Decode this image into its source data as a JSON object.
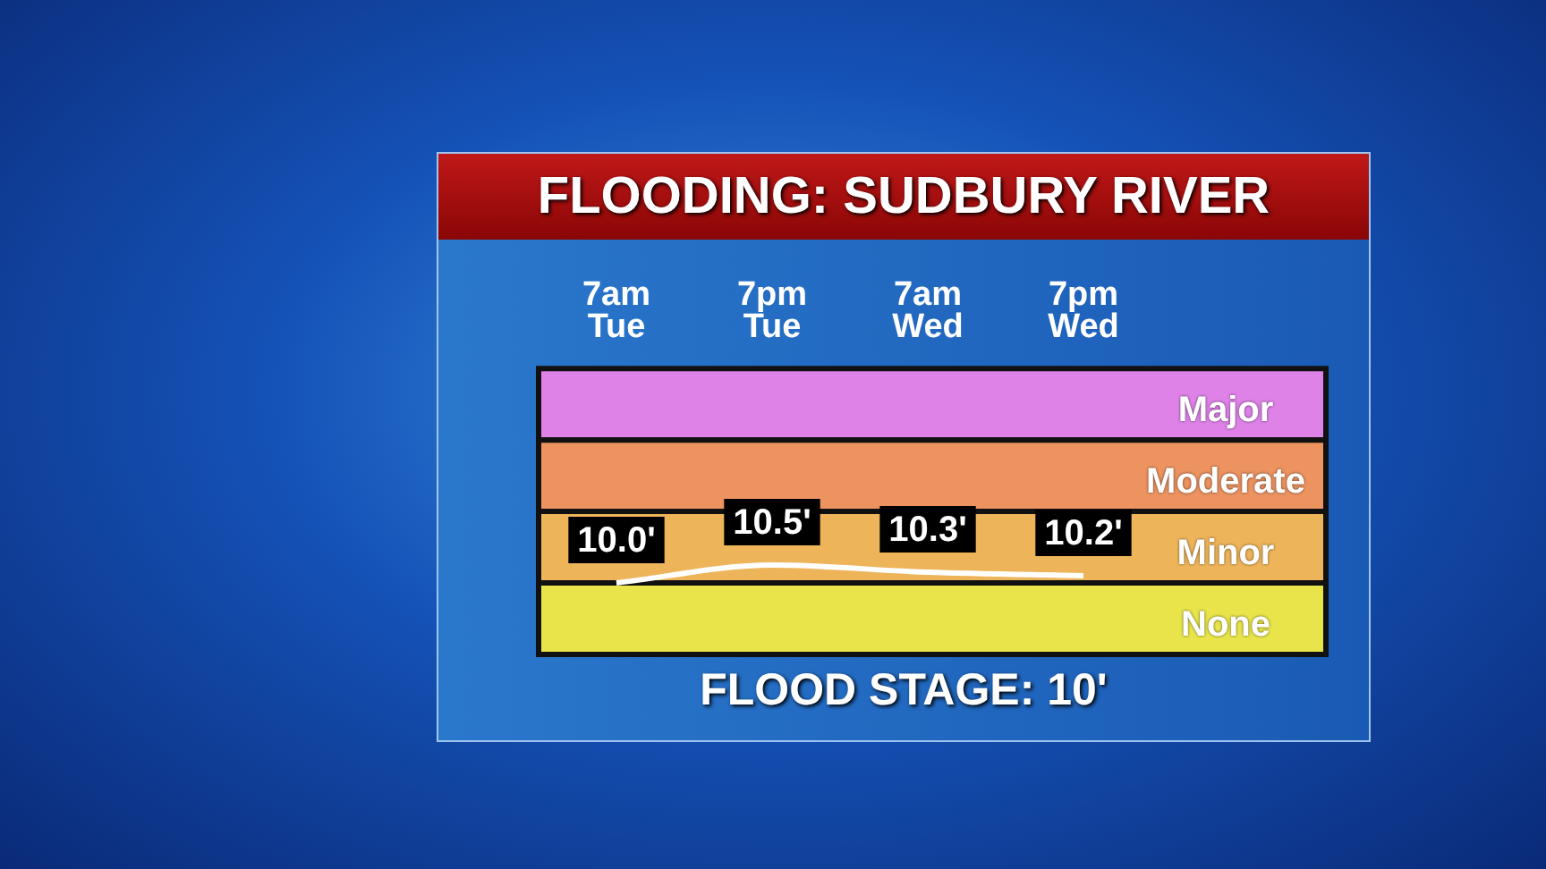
{
  "chart_data": {
    "type": "line",
    "title": "FLOODING: SUDBURY RIVER",
    "categories": [
      "7am Tue",
      "7pm Tue",
      "7am Wed",
      "7pm Wed"
    ],
    "series": [
      {
        "color": "#ffffff",
        "values": [
          10.0,
          10.5,
          10.3,
          10.2
        ],
        "value_labels": [
          "10.0'",
          "10.5'",
          "10.3'",
          "10.2'"
        ]
      }
    ],
    "tick_labels": "x",
    "legend": false,
    "marker": "none",
    "bands": [
      {
        "axis": "y",
        "from": 14,
        "to": 16,
        "label": "Major",
        "color": "#de82e8"
      },
      {
        "axis": "y",
        "from": 12,
        "to": 14,
        "label": "Moderate",
        "color": "#ec9360"
      },
      {
        "axis": "y",
        "from": 10,
        "to": 12,
        "label": "Minor",
        "color": "#eeb45a"
      },
      {
        "axis": "y",
        "from": 8,
        "to": 10,
        "label": "None",
        "color": "#e8e44a"
      }
    ],
    "annotations": [
      "FLOOD STAGE: 10'"
    ]
  }
}
